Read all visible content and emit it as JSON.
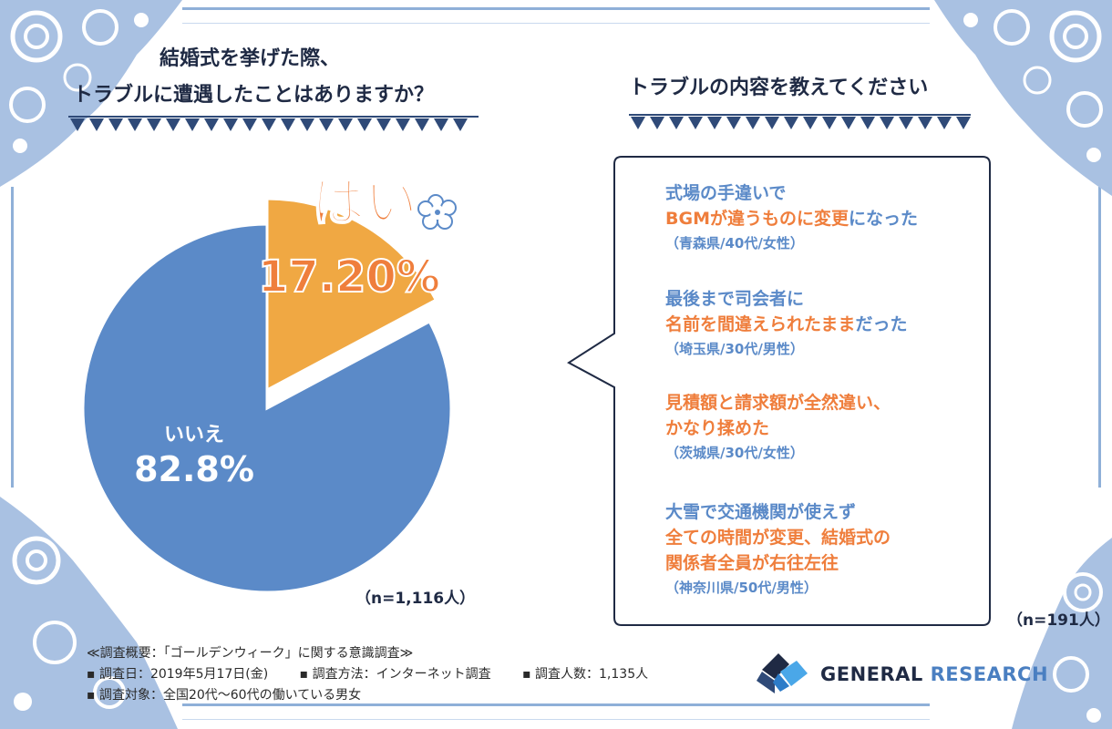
{
  "left_heading": {
    "line1": "結婚式を挙げた際、",
    "line2": "トラブルに遭遇したことはありますか？"
  },
  "right_heading": "トラブルの内容を教えてください",
  "chart_data": {
    "type": "pie",
    "title": "結婚式を挙げた際、トラブルに遭遇したことはありますか？",
    "slices": [
      {
        "label": "はい",
        "value": 17.2,
        "display": "17.20%",
        "color": "#f0a843"
      },
      {
        "label": "いいえ",
        "value": 82.8,
        "display": "82.8%",
        "color": "#5b8ac8"
      }
    ],
    "sample": "（n=1,116人）"
  },
  "quotes": [
    {
      "lines": [
        [
          {
            "text": "式場の手違いで",
            "tone": "blue"
          }
        ],
        [
          {
            "text": "BGMが違うものに変更",
            "tone": "orange"
          },
          {
            "text": "になった",
            "tone": "blue"
          }
        ]
      ],
      "source": "（青森県/40代/女性）"
    },
    {
      "lines": [
        [
          {
            "text": "最後まで司会者に",
            "tone": "blue"
          }
        ],
        [
          {
            "text": "名前を間違えられたまま",
            "tone": "orange"
          },
          {
            "text": "だった",
            "tone": "blue"
          }
        ]
      ],
      "source": "（埼玉県/30代/男性）"
    },
    {
      "lines": [
        [
          {
            "text": "見積額と請求額が全然違い、",
            "tone": "orange"
          }
        ],
        [
          {
            "text": "かなり揉めた",
            "tone": "orange"
          }
        ]
      ],
      "source": "（茨城県/30代/女性）"
    },
    {
      "lines": [
        [
          {
            "text": "大雪で交通機関が使えず",
            "tone": "blue"
          }
        ],
        [
          {
            "text": "全ての時間が変更、結婚式の",
            "tone": "orange"
          }
        ],
        [
          {
            "text": "関係者全員が右往左往",
            "tone": "orange"
          }
        ]
      ],
      "source": "（神奈川県/50代/男性）"
    }
  ],
  "quotes_sample": "（n=191人）",
  "footer": {
    "title": "≪調査概要：「ゴールデンウィーク」に関する意識調査≫",
    "date": "▪ 調査日：2019年5月17日(金)",
    "method": "▪ 調査方法：インターネット調査",
    "count": "▪ 調査人数：1,135人",
    "target": "▪ 調査対象：全国20代～60代の働いている男女"
  },
  "logo": {
    "part1": "GENERAL ",
    "part2": "RESEARCH"
  },
  "colors": {
    "blue": "#5b8ac8",
    "orange": "#ef7e3c",
    "gold": "#f0a843",
    "frame": "#8fb0d8",
    "navy": "#1f2a44"
  }
}
